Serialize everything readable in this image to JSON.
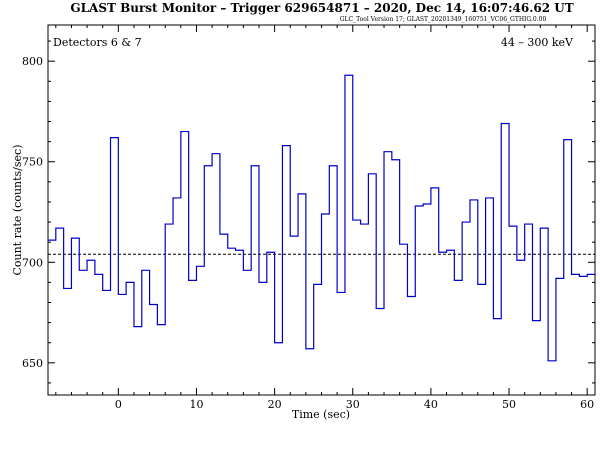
{
  "chart_data": {
    "type": "line",
    "style": "step-histogram",
    "title": "GLAST Burst Monitor  –  Trigger 629654871  –  2020, Dec 14, 16:07:46.62 UT",
    "subtitle": "GLC_Tool Version 17; GLAST_20201349_160751_VC06_GTHIG.0.00",
    "annotation_left": "Detectors 6 & 7",
    "annotation_right": "44 – 300 keV",
    "xlabel": "Time (sec)",
    "ylabel": "Count rate (counts/sec)",
    "xlim": [
      -9,
      61
    ],
    "ylim": [
      634,
      818
    ],
    "xticks": [
      0,
      10,
      20,
      30,
      40,
      50,
      60
    ],
    "yticks": [
      650,
      700,
      750,
      800
    ],
    "grid": false,
    "background_level": 704,
    "line_color": "#0000cc",
    "bin_edges": [
      -9,
      -8,
      -7,
      -6,
      -5,
      -4,
      -3,
      -2,
      -1,
      0,
      1,
      2,
      3,
      4,
      5,
      6,
      7,
      8,
      9,
      10,
      11,
      12,
      13,
      14,
      15,
      16,
      17,
      18,
      19,
      20,
      21,
      22,
      23,
      24,
      25,
      26,
      27,
      28,
      29,
      30,
      31,
      32,
      33,
      34,
      35,
      36,
      37,
      38,
      39,
      40,
      41,
      42,
      43,
      44,
      45,
      46,
      47,
      48,
      49,
      50,
      51,
      52,
      53,
      54,
      55,
      56,
      57,
      58,
      59,
      60,
      61
    ],
    "counts": [
      711,
      717,
      687,
      712,
      696,
      701,
      694,
      686,
      762,
      684,
      690,
      668,
      696,
      679,
      669,
      719,
      732,
      765,
      691,
      698,
      748,
      754,
      714,
      707,
      706,
      696,
      748,
      690,
      705,
      660,
      758,
      713,
      734,
      657,
      689,
      724,
      748,
      685,
      793,
      721,
      719,
      744,
      677,
      755,
      751,
      709,
      683,
      728,
      729,
      737,
      705,
      706,
      691,
      720,
      731,
      689,
      732,
      672,
      769,
      718,
      701,
      719,
      671,
      717,
      651,
      692,
      761,
      694,
      693,
      694
    ]
  }
}
